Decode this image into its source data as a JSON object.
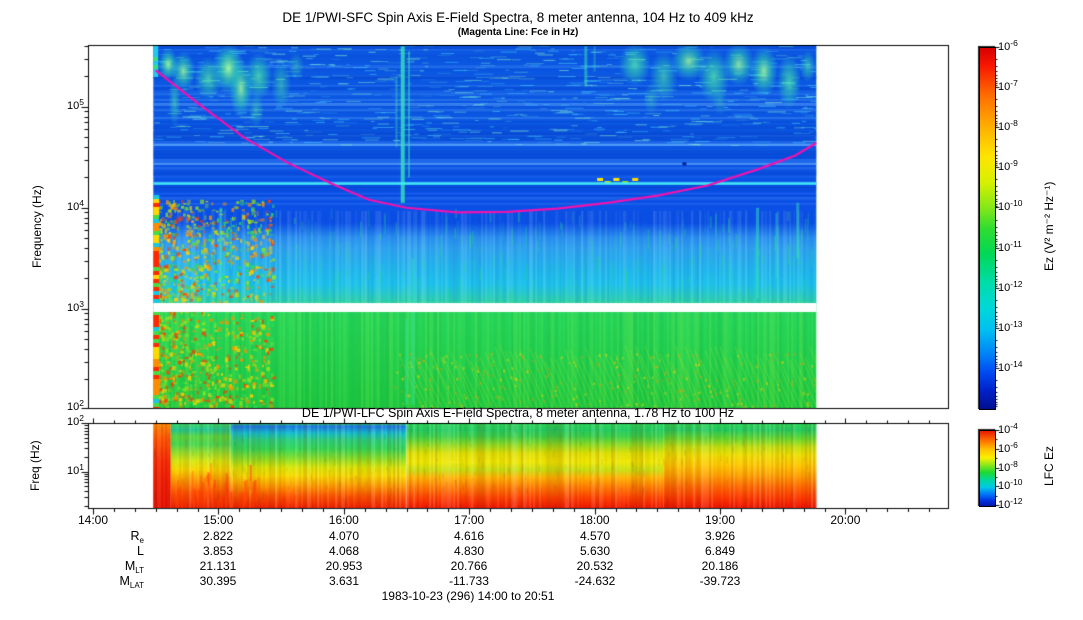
{
  "footer": "1983-10-23 (296) 14:00 to 20:51",
  "colors": {
    "fce_line": "#f012b0",
    "interference_line": "#46eef5",
    "frame": "#000000",
    "background": "#ffffff"
  },
  "ephemeris": {
    "rows": [
      {
        "label": "R",
        "sub": "e",
        "values": [
          "2.822",
          "4.070",
          "4.616",
          "4.570",
          "3.926"
        ]
      },
      {
        "label": "L",
        "sub": "",
        "values": [
          "3.853",
          "4.068",
          "4.830",
          "5.630",
          "6.849"
        ]
      },
      {
        "label": "M",
        "sub": "LT",
        "values": [
          "21.131",
          "20.953",
          "20.766",
          "20.532",
          "20.186"
        ]
      },
      {
        "label": "M",
        "sub": "LAT",
        "values": [
          "30.395",
          "3.631",
          "-11.733",
          "-24.632",
          "-39.723"
        ]
      }
    ]
  },
  "chart_data": [
    {
      "type": "heatmap",
      "instrument": "DE 1/PWI-SFC",
      "title": "DE 1/PWI-SFC  Spin Axis E-Field Spectra, 8 meter antenna, 104 Hz to 409 kHz",
      "subtitle": "(Magenta Line: Fce in Hz)",
      "ylabel": "Frequency (Hz)",
      "y_scale": "log",
      "y_range_hz": [
        104,
        409000
      ],
      "y_ticks": [
        {
          "exp": "5",
          "logf": 5
        },
        {
          "exp": "4",
          "logf": 4
        },
        {
          "exp": "3",
          "logf": 3
        },
        {
          "exp": "2",
          "logf": 2.017
        }
      ],
      "x_ticks": [
        "14:00",
        "15:00",
        "16:00",
        "17:00",
        "18:00",
        "19:00",
        "20:00"
      ],
      "x_range_hours": [
        14.0,
        20.85
      ],
      "data_extent_hours": [
        14.48,
        19.77
      ],
      "color_scale": {
        "label": "Ez (V² m⁻² Hz⁻¹)",
        "scale": "log",
        "range": [
          1e-15,
          1e-06
        ],
        "tick_exps": [
          "-6",
          "-7",
          "-8",
          "-9",
          "-10",
          "-11",
          "-12",
          "-13",
          "-14"
        ],
        "stops": [
          [
            0,
            "#d80000"
          ],
          [
            0.05,
            "#f81800"
          ],
          [
            0.13,
            "#ff6c00"
          ],
          [
            0.22,
            "#ffb000"
          ],
          [
            0.3,
            "#ffe400"
          ],
          [
            0.37,
            "#d8f000"
          ],
          [
            0.44,
            "#88e818"
          ],
          [
            0.5,
            "#30dd30"
          ],
          [
            0.57,
            "#00d855"
          ],
          [
            0.65,
            "#00dca8"
          ],
          [
            0.72,
            "#00d8d8"
          ],
          [
            0.78,
            "#00c0f0"
          ],
          [
            0.85,
            "#0080f8"
          ],
          [
            0.9,
            "#0048f0"
          ],
          [
            0.95,
            "#0020c8"
          ],
          [
            1,
            "#000f90"
          ]
        ]
      },
      "background_stops": [
        [
          0,
          "#0b57e2"
        ],
        [
          0.23,
          "#0b57e2"
        ],
        [
          0.37,
          "#0a52e6"
        ],
        [
          0.45,
          "#0b50e6"
        ],
        [
          0.49,
          "#0b50e6"
        ],
        [
          0.53,
          "#2b90f0"
        ],
        [
          0.56,
          "#2fa4f0"
        ],
        [
          0.62,
          "#22b8ee"
        ],
        [
          0.66,
          "#1fc4ec"
        ],
        [
          0.705,
          "#2ed0b0"
        ],
        [
          0.712,
          "#2cd49a"
        ],
        [
          0.735,
          "#2ad868"
        ],
        [
          0.74,
          "#28d85c"
        ],
        [
          1,
          "#1fca43"
        ]
      ],
      "fce_line": {
        "hours": [
          14.5,
          14.85,
          15.2,
          15.55,
          15.9,
          16.2,
          16.5,
          16.9,
          17.3,
          17.7,
          18.1,
          18.5,
          18.9,
          19.3,
          19.6,
          19.77
        ],
        "fce_hz": [
          229000,
          105000,
          50000,
          28000,
          17400,
          12000,
          10000,
          9000,
          9100,
          9800,
          11200,
          13200,
          16600,
          24000,
          33000,
          44000
        ]
      },
      "features": {
        "description": [
          "auroral emission patches above 50 kHz at 14:30-15:40 and 18:20-19:45",
          "narrowband interference line near 17.5 kHz across full data interval",
          "white instrument band gap near 1 kHz",
          "broadband vertical burst near 16:30",
          "intense red/orange low-frequency turbulence at data start 14:29-15:00"
        ],
        "interference_line_hz": 17500,
        "data_gap_hz": [
          930,
          1140
        ],
        "emission_patches": {
          "topleft": [
            [
              14.6,
              5.42,
              10,
              16,
              0.9
            ],
            [
              14.72,
              5.35,
              12,
              20,
              0.8
            ],
            [
              14.92,
              5.28,
              14,
              22,
              0.7
            ],
            [
              15.08,
              5.38,
              16,
              26,
              0.95
            ],
            [
              15.18,
              5.18,
              12,
              30,
              0.85
            ],
            [
              15.32,
              5.3,
              14,
              24,
              0.75
            ],
            [
              15.5,
              5.22,
              10,
              26,
              0.5
            ],
            [
              15.62,
              5.4,
              8,
              14,
              0.4
            ],
            [
              15.3,
              4.97,
              8,
              18,
              0.45
            ],
            [
              14.65,
              5.05,
              6,
              25,
              0.5
            ]
          ],
          "topright": [
            [
              18.32,
              5.42,
              16,
              22,
              0.75
            ],
            [
              18.55,
              5.3,
              14,
              26,
              0.6
            ],
            [
              18.75,
              5.45,
              18,
              20,
              0.8
            ],
            [
              18.95,
              5.3,
              16,
              28,
              0.75
            ],
            [
              19.15,
              5.42,
              16,
              22,
              0.8
            ],
            [
              19.35,
              5.35,
              14,
              26,
              0.85
            ],
            [
              19.55,
              5.25,
              12,
              28,
              0.7
            ],
            [
              19.7,
              5.4,
              8,
              16,
              0.6
            ],
            [
              18.45,
              5.08,
              8,
              16,
              0.35
            ],
            [
              19.0,
              5.05,
              8,
              14,
              0.3
            ]
          ]
        },
        "vertical_streaks": [
          [
            16.47,
            5.6,
            4.05,
            0.8,
            4
          ],
          [
            16.52,
            5.55,
            4.3,
            0.5,
            2
          ],
          [
            16.42,
            5.3,
            4.6,
            0.4,
            2
          ],
          [
            15.02,
            4.0,
            3.2,
            0.5,
            3
          ],
          [
            15.1,
            3.9,
            3.4,
            0.35,
            2
          ],
          [
            17.93,
            5.6,
            5.2,
            0.5,
            3
          ],
          [
            18.0,
            5.6,
            5.35,
            0.35,
            2
          ],
          [
            19.3,
            4.0,
            3.1,
            0.5,
            3
          ],
          [
            19.45,
            3.95,
            3.3,
            0.4,
            2
          ],
          [
            19.62,
            4.05,
            3.5,
            0.45,
            3
          ],
          [
            16.55,
            3.5,
            2.05,
            0.3,
            4
          ],
          [
            16.5,
            2.9,
            2.05,
            0.35,
            3
          ]
        ]
      }
    },
    {
      "type": "heatmap",
      "instrument": "DE 1/PWI-LFC",
      "title": "DE 1/PWI-LFC  Spin Axis E-Field Spectra, 8 meter antenna, 1.78 Hz to 100 Hz",
      "ylabel": "Freq (Hz)",
      "y_scale": "log",
      "y_range_hz": [
        1.78,
        100
      ],
      "y_ticks": [
        {
          "exp": "2",
          "logv": 2
        },
        {
          "exp": "1",
          "logv": 1
        }
      ],
      "x_ticks": [
        "14:00",
        "15:00",
        "16:00",
        "17:00",
        "18:00",
        "19:00",
        "20:00"
      ],
      "data_extent_hours": [
        14.48,
        19.77
      ],
      "color_scale": {
        "label": "LFC Ez",
        "scale": "log",
        "range": [
          1e-12,
          0.0001
        ],
        "tick_exps": [
          "-4",
          "-6",
          "-8",
          "-10",
          "-12"
        ],
        "stops": [
          [
            0,
            "#e81800"
          ],
          [
            0.12,
            "#ff6a00"
          ],
          [
            0.25,
            "#ffc400"
          ],
          [
            0.36,
            "#f8f000"
          ],
          [
            0.45,
            "#90e818"
          ],
          [
            0.55,
            "#20d830"
          ],
          [
            0.65,
            "#00d89a"
          ],
          [
            0.75,
            "#00c8e8"
          ],
          [
            0.85,
            "#0070f8"
          ],
          [
            0.93,
            "#0030e0"
          ],
          [
            1,
            "#0018a8"
          ]
        ]
      },
      "features": {
        "description": [
          "red burst column across all frequencies at data start 14:29",
          "blue quiet band at top (50-100 Hz) from 15:05 to 16:30",
          "spectral bands become striped and more intense after 16:30",
          "lowest frequencies saturated red/orange throughout"
        ]
      },
      "segments": [
        {
          "hours": [
            14.48,
            14.62
          ],
          "stops": [
            [
              0,
              "#ff8800"
            ],
            [
              0.2,
              "#ff5000"
            ],
            [
              0.45,
              "#f82800"
            ],
            [
              0.7,
              "#f01800"
            ],
            [
              1,
              "#e81000"
            ]
          ]
        },
        {
          "hours": [
            14.62,
            15.1
          ],
          "stops": [
            [
              0,
              "#38d860"
            ],
            [
              0.08,
              "#20c890"
            ],
            [
              0.16,
              "#58d840"
            ],
            [
              0.25,
              "#48d850"
            ],
            [
              0.34,
              "#90e030"
            ],
            [
              0.45,
              "#d8e810"
            ],
            [
              0.55,
              "#f8d800"
            ],
            [
              0.68,
              "#ff9800"
            ],
            [
              0.82,
              "#ff5400"
            ],
            [
              1,
              "#f02000"
            ]
          ]
        },
        {
          "hours": [
            15.1,
            16.5
          ],
          "stops": [
            [
              0,
              "#28d060"
            ],
            [
              0.04,
              "#1878e8"
            ],
            [
              0.12,
              "#10c0d0"
            ],
            [
              0.2,
              "#28d080"
            ],
            [
              0.3,
              "#30d858"
            ],
            [
              0.42,
              "#88e028"
            ],
            [
              0.52,
              "#d8e808"
            ],
            [
              0.62,
              "#f8dc00"
            ],
            [
              0.74,
              "#ff9c00"
            ],
            [
              0.86,
              "#ff5400"
            ],
            [
              1,
              "#f22000"
            ]
          ]
        },
        {
          "hours": [
            16.5,
            18.55
          ],
          "stops": [
            [
              0,
              "#28d858"
            ],
            [
              0.08,
              "#20cc60"
            ],
            [
              0.16,
              "#38d048"
            ],
            [
              0.26,
              "#90dc20"
            ],
            [
              0.36,
              "#e0e000"
            ],
            [
              0.46,
              "#f0e800"
            ],
            [
              0.55,
              "#c8e010"
            ],
            [
              0.64,
              "#ffb400"
            ],
            [
              0.76,
              "#ff7800"
            ],
            [
              0.88,
              "#ff4000"
            ],
            [
              1,
              "#f01800"
            ]
          ]
        },
        {
          "hours": [
            18.55,
            19.77
          ],
          "stops": [
            [
              0,
              "#28d858"
            ],
            [
              0.08,
              "#20cc60"
            ],
            [
              0.18,
              "#60d830"
            ],
            [
              0.28,
              "#c0e010"
            ],
            [
              0.38,
              "#f0e000"
            ],
            [
              0.5,
              "#ffc800"
            ],
            [
              0.62,
              "#ffa000"
            ],
            [
              0.75,
              "#ff6800"
            ],
            [
              0.88,
              "#ff3800"
            ],
            [
              1,
              "#ee1400"
            ]
          ]
        }
      ]
    }
  ]
}
